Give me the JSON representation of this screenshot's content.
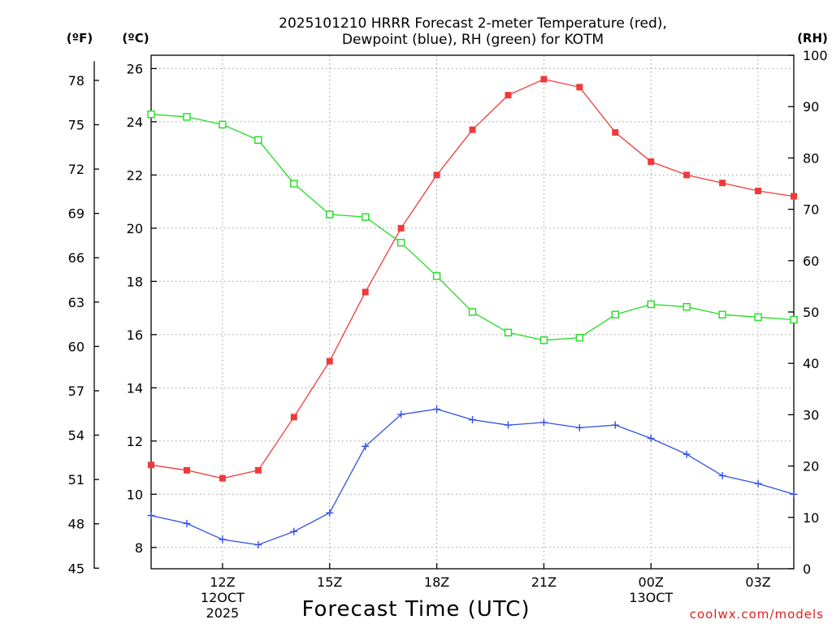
{
  "chart_data": {
    "type": "line",
    "title_lines": [
      "2025101210 HRRR Forecast 2-meter Temperature (red),",
      "Dewpoint (blue), RH (green) for KOTM"
    ],
    "xlabel": "Forecast Time (UTC)",
    "x_ticks": [
      {
        "hour": 12,
        "label": "12Z",
        "sub": [
          "12OCT",
          "2025"
        ]
      },
      {
        "hour": 15,
        "label": "15Z",
        "sub": []
      },
      {
        "hour": 18,
        "label": "18Z",
        "sub": []
      },
      {
        "hour": 21,
        "label": "21Z",
        "sub": []
      },
      {
        "hour": 24,
        "label": "00Z",
        "sub": [
          "13OCT"
        ]
      },
      {
        "hour": 27,
        "label": "03Z",
        "sub": []
      }
    ],
    "xlim": [
      10,
      28
    ],
    "left_axis_c": {
      "unit": "(ºC)",
      "ylim": [
        7.2,
        26.5
      ],
      "ticks": [
        8,
        10,
        12,
        14,
        16,
        18,
        20,
        22,
        24,
        26
      ]
    },
    "left_axis_f": {
      "unit": "(ºF)",
      "ticks": [
        45,
        48,
        51,
        54,
        57,
        60,
        63,
        66,
        69,
        72,
        75,
        78
      ]
    },
    "right_axis_rh": {
      "unit": "(RH)",
      "ylim": [
        0,
        100
      ],
      "ticks": [
        0,
        10,
        20,
        30,
        40,
        50,
        60,
        70,
        80,
        90,
        100
      ]
    },
    "x": [
      10,
      11,
      12,
      13,
      14,
      15,
      16,
      17,
      18,
      19,
      20,
      21,
      22,
      23,
      24,
      25,
      26,
      27,
      28
    ],
    "series": [
      {
        "name": "Temperature",
        "unit": "C",
        "color": "#f03a3a",
        "marker": "filled-square",
        "values": [
          11.1,
          10.9,
          10.6,
          10.9,
          12.9,
          15.0,
          17.6,
          20.0,
          22.0,
          23.7,
          25.0,
          25.6,
          25.3,
          23.6,
          22.5,
          22.0,
          21.7,
          21.4,
          21.2
        ]
      },
      {
        "name": "Dewpoint",
        "unit": "C",
        "color": "#3050e8",
        "marker": "plus",
        "values": [
          9.2,
          8.9,
          8.3,
          8.1,
          8.6,
          9.3,
          11.8,
          13.0,
          13.2,
          12.8,
          12.6,
          12.7,
          12.5,
          12.6,
          12.1,
          11.5,
          10.7,
          10.4,
          10.0
        ]
      },
      {
        "name": "RH",
        "unit": "%",
        "color": "#22dd22",
        "marker": "open-square",
        "values": [
          88.5,
          88.0,
          86.5,
          83.5,
          75.0,
          69.0,
          68.5,
          63.5,
          57.0,
          50.0,
          46.0,
          44.5,
          45.0,
          49.5,
          51.5,
          51.0,
          49.5,
          49.0,
          48.5
        ]
      }
    ],
    "credit": "coolwx.com/models"
  }
}
